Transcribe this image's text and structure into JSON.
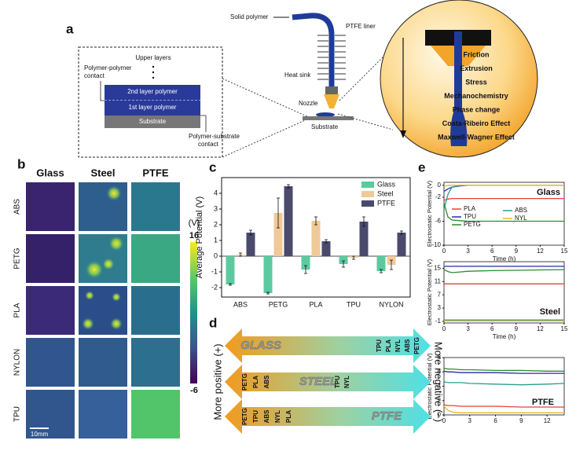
{
  "panels": [
    "a",
    "b",
    "c",
    "d",
    "e"
  ],
  "diagram_a": {
    "layers": {
      "upper": "Upper layers",
      "pp_contact": [
        "Polymer-polymer",
        "contact"
      ],
      "second": "2nd layer polymer",
      "first": "1st layer polymer",
      "substrate": "Substrate",
      "ps_contact": [
        "Polymer-substrate",
        "contact"
      ]
    },
    "printer": {
      "solid": "Solid polymer",
      "liner": "PTFE liner",
      "sink": "Heat sink",
      "nozzle": "Nozzle",
      "substrate": "Substrate"
    },
    "effects": [
      "Friction",
      "Extrusion",
      "Stress",
      "Mechanochemistry",
      "Phase change",
      "Costa-Ribeiro Effect",
      "Maxwell-Wagner Effect"
    ]
  },
  "maps_b": {
    "columns": [
      "Glass",
      "Steel",
      "PTFE"
    ],
    "rows": [
      "ABS",
      "PETG",
      "PLA",
      "NYLON",
      "TPU"
    ],
    "colorbar": {
      "unit": "(V)",
      "max": 16,
      "min": -6
    },
    "scale": "10mm"
  },
  "ranking_d": {
    "left": "More positive (+)",
    "right": "More negative (−)",
    "arrows": [
      {
        "surface": "GLASS",
        "before": [],
        "after": [
          "TPU",
          "PLA",
          "NYL",
          "ABS",
          "PETG"
        ]
      },
      {
        "surface": "STEEL",
        "before": [
          "PETG",
          "PLA",
          "ABS"
        ],
        "after": [
          "TPU",
          "NYL"
        ]
      },
      {
        "surface": "PTFE",
        "before": [
          "PETG",
          "TPU",
          "ABS",
          "NYL",
          "PLA"
        ],
        "after": []
      }
    ]
  },
  "chart_data": [
    {
      "type": "bar",
      "y_label": "Average Potential (V)",
      "categories": [
        "ABS",
        "PETG",
        "PLA",
        "TPU",
        "NYLON"
      ],
      "ylim": [
        -2.6,
        5
      ],
      "yticks": [
        -2,
        -1,
        0,
        1,
        2,
        3,
        4
      ],
      "legend": "upper right",
      "series": [
        {
          "name": "Glass",
          "color": "#5ccaa0",
          "values": [
            -1.8,
            -2.35,
            -0.85,
            -0.5,
            -0.95
          ],
          "errors": [
            0.05,
            0.05,
            0.25,
            0.2,
            0.1
          ]
        },
        {
          "name": "Steel",
          "color": "#f0c998",
          "values": [
            0.1,
            2.75,
            2.25,
            -0.1,
            -0.55
          ],
          "errors": [
            0.1,
            0.95,
            0.25,
            0.1,
            0.3
          ]
        },
        {
          "name": "PTFE",
          "color": "#4a4a6c",
          "values": [
            1.5,
            4.45,
            0.95,
            2.2,
            1.5
          ],
          "errors": [
            0.15,
            0.1,
            0.1,
            0.3,
            0.1
          ]
        }
      ]
    },
    {
      "type": "line",
      "title": "Glass",
      "x_label": "Time (h)",
      "y_label": "Electrostatic Potential (V)",
      "legend": "center",
      "xlim": [
        0,
        15
      ],
      "xticks": [
        0,
        3,
        6,
        9,
        12,
        15
      ],
      "ylim": [
        -10,
        0.5
      ],
      "yticks": [
        -10,
        -6,
        -2,
        0
      ],
      "x": [
        0,
        0.5,
        1,
        2,
        3,
        6,
        9,
        12,
        15
      ],
      "series": [
        {
          "name": "PLA",
          "color": "#e8413c",
          "values": [
            -2.5,
            -2.3,
            -2.2,
            -2.2,
            -2.2,
            -2.2,
            -2.2,
            -2.2,
            -2.2
          ]
        },
        {
          "name": "TPU",
          "color": "#2a2aa8",
          "values": [
            -1,
            -0.6,
            -0.3,
            -0.1,
            0,
            0,
            0,
            0,
            0
          ]
        },
        {
          "name": "ABS",
          "color": "#2a9d8f",
          "values": [
            -4,
            -1.5,
            -0.3,
            0,
            0,
            0,
            0,
            0,
            0
          ]
        },
        {
          "name": "PETG",
          "color": "#2e8b2e",
          "values": [
            -3,
            -5.3,
            -5.8,
            -5.9,
            -6,
            -6,
            -6,
            -6,
            -6
          ]
        },
        {
          "name": "NYL",
          "color": "#f0b429",
          "values": [
            -0.2,
            0,
            0,
            0,
            0,
            0,
            0,
            0,
            0
          ]
        }
      ]
    },
    {
      "type": "line",
      "title": "Steel",
      "x_label": "Time (h)",
      "y_label": "Electrostatic Potential (V)",
      "xlim": [
        0,
        15
      ],
      "xticks": [
        0,
        3,
        6,
        9,
        12,
        15
      ],
      "ylim": [
        -1.5,
        17
      ],
      "yticks": [
        -1,
        3,
        7,
        11,
        15
      ],
      "x": [
        0,
        0.5,
        1,
        2,
        3,
        6,
        9,
        12,
        15
      ],
      "series": [
        {
          "name": "PLA",
          "color": "#e8413c",
          "values": [
            10.3,
            10.3,
            10.3,
            10.3,
            10.3,
            10.3,
            10.3,
            10.3,
            10.3
          ]
        },
        {
          "name": "TPU",
          "color": "#2a2aa8",
          "values": [
            15.6,
            15.6,
            15.6,
            15.6,
            15.6,
            15.6,
            15.6,
            15.6,
            15.6
          ]
        },
        {
          "name": "ABS",
          "color": "#2a9d8f",
          "values": [
            -0.6,
            -0.6,
            -0.6,
            -0.6,
            -0.6,
            -0.6,
            -0.6,
            -0.6,
            -0.6
          ]
        },
        {
          "name": "PETG",
          "color": "#2e8b2e",
          "values": [
            14.6,
            14,
            13.7,
            13.9,
            14.1,
            14.3,
            14.4,
            14.5,
            14.6
          ]
        },
        {
          "name": "NYL",
          "color": "#f0b429",
          "values": [
            -0.9,
            -0.9,
            -0.9,
            -0.9,
            -0.9,
            -0.9,
            -0.9,
            -0.9,
            -0.9
          ]
        }
      ]
    },
    {
      "type": "line",
      "title": "PTFE",
      "y_label": "Electrostatic Potential (V)",
      "xlim": [
        0,
        14
      ],
      "xticks": [
        0,
        3,
        6,
        9,
        12
      ],
      "ylim": [
        0,
        8
      ],
      "yticks": [
        0,
        2,
        4,
        6,
        8
      ],
      "x": [
        0,
        0.5,
        1,
        2,
        3,
        6,
        9,
        12,
        14
      ],
      "series": [
        {
          "name": "PLA",
          "color": "#e8413c",
          "values": [
            1.4,
            1.3,
            1.3,
            1.2,
            1.2,
            1.2,
            1.1,
            1.1,
            1.1
          ]
        },
        {
          "name": "TPU",
          "color": "#2a2aa8",
          "values": [
            6.1,
            6,
            6,
            5.9,
            5.9,
            5.9,
            5.8,
            5.8,
            5.8
          ]
        },
        {
          "name": "ABS",
          "color": "#2a9d8f",
          "values": [
            4.6,
            4.5,
            4.5,
            4.5,
            4.4,
            4.3,
            4.2,
            4.3,
            4.4
          ]
        },
        {
          "name": "PETG",
          "color": "#2e8b2e",
          "values": [
            6.5,
            6.4,
            6.4,
            6.3,
            6.3,
            6.2,
            6.2,
            6.1,
            6.1
          ]
        },
        {
          "name": "NYL",
          "color": "#f0b429",
          "values": [
            1.2,
            0.6,
            0.4,
            0.3,
            0.3,
            0.3,
            0.3,
            0.3,
            0.3
          ]
        }
      ]
    }
  ]
}
